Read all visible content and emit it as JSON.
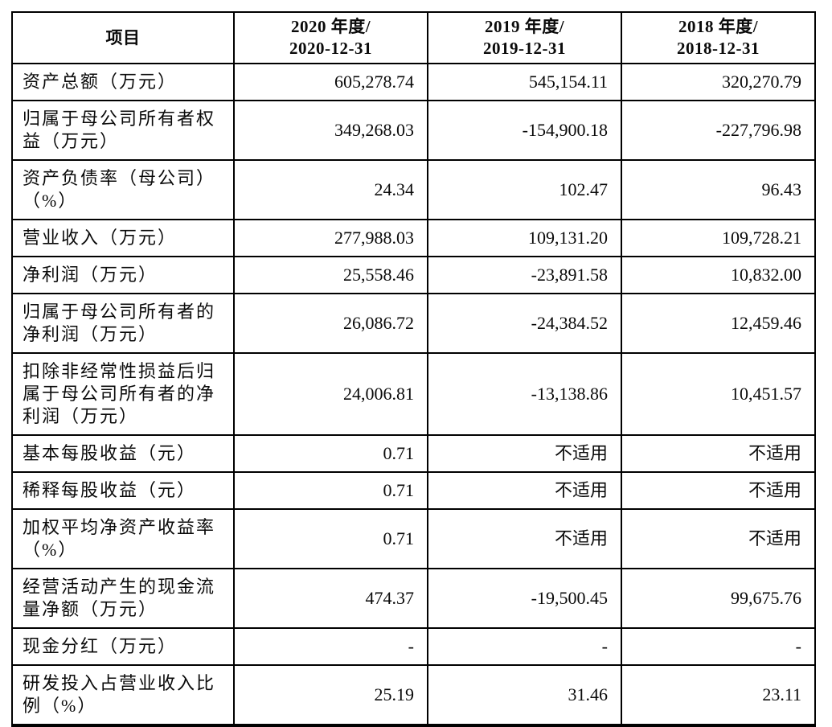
{
  "page": {
    "background": "#ffffff"
  },
  "colors": {
    "border": "#000000",
    "text": "#0a0a0a"
  },
  "table": {
    "header": {
      "item": "项目",
      "periods": [
        {
          "line1": "2020 年度/",
          "line2": "2020-12-31"
        },
        {
          "line1": "2019 年度/",
          "line2": "2019-12-31"
        },
        {
          "line1": "2018 年度/",
          "line2": "2018-12-31"
        }
      ]
    },
    "rows": [
      {
        "item": "资产总额（万元）",
        "v2020": "605,278.74",
        "v2019": "545,154.11",
        "v2018": "320,270.79"
      },
      {
        "item": "归属于母公司所有者权益（万元）",
        "v2020": "349,268.03",
        "v2019": "-154,900.18",
        "v2018": "-227,796.98"
      },
      {
        "item": "资产负债率（母公司）（%）",
        "v2020": "24.34",
        "v2019": "102.47",
        "v2018": "96.43"
      },
      {
        "item": "营业收入（万元）",
        "v2020": "277,988.03",
        "v2019": "109,131.20",
        "v2018": "109,728.21"
      },
      {
        "item": "净利润（万元）",
        "v2020": "25,558.46",
        "v2019": "-23,891.58",
        "v2018": "10,832.00"
      },
      {
        "item": "归属于母公司所有者的净利润（万元）",
        "v2020": "26,086.72",
        "v2019": "-24,384.52",
        "v2018": "12,459.46"
      },
      {
        "item": "扣除非经常性损益后归属于母公司所有者的净利润（万元）",
        "v2020": "24,006.81",
        "v2019": "-13,138.86",
        "v2018": "10,451.57"
      },
      {
        "item": "基本每股收益（元）",
        "v2020": "0.71",
        "v2019": "不适用",
        "v2018": "不适用"
      },
      {
        "item": "稀释每股收益（元）",
        "v2020": "0.71",
        "v2019": "不适用",
        "v2018": "不适用"
      },
      {
        "item": "加权平均净资产收益率（%）",
        "v2020": "0.71",
        "v2019": "不适用",
        "v2018": "不适用"
      },
      {
        "item": "经营活动产生的现金流量净额（万元）",
        "v2020": "474.37",
        "v2019": "-19,500.45",
        "v2018": "99,675.76"
      },
      {
        "item": "现金分红（万元）",
        "v2020": "-",
        "v2019": "-",
        "v2018": "-"
      },
      {
        "item": "研发投入占营业收入比例（%）",
        "v2020": "25.19",
        "v2019": "31.46",
        "v2018": "23.11"
      }
    ]
  }
}
